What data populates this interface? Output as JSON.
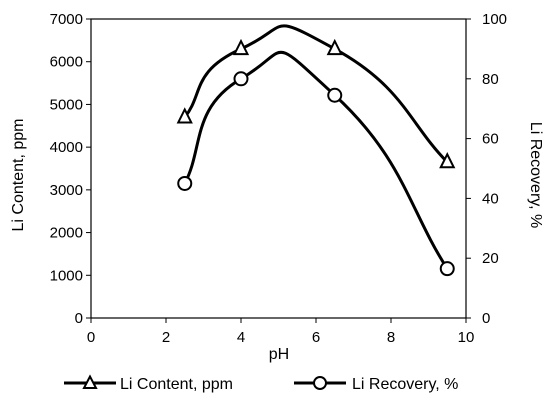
{
  "chart_data": {
    "type": "line",
    "xlabel": "pH",
    "ylabel_left": "Li Content, ppm",
    "ylabel_right": "Li Recovery, %",
    "xlim": [
      0,
      10
    ],
    "xticks": [
      0,
      2,
      4,
      6,
      8,
      10
    ],
    "ylim_left": [
      0,
      7000
    ],
    "yticks_left": [
      0,
      1000,
      2000,
      3000,
      4000,
      5000,
      6000,
      7000
    ],
    "ylim_right": [
      0,
      100
    ],
    "yticks_right": [
      0,
      20,
      40,
      60,
      80,
      100
    ],
    "grid": false,
    "legend_position": "bottom",
    "series": [
      {
        "name": "Li Content, ppm",
        "axis": "left",
        "marker": "triangle",
        "color": "#000000",
        "x": [
          2.5,
          4,
          6.5,
          9.5
        ],
        "y": [
          4700,
          6300,
          6300,
          3650
        ]
      },
      {
        "name": "Li Recovery, %",
        "axis": "right",
        "marker": "circle",
        "color": "#000000",
        "x": [
          2.5,
          4,
          6.5,
          9.5
        ],
        "y": [
          45,
          80,
          74.5,
          16.5
        ]
      }
    ]
  }
}
